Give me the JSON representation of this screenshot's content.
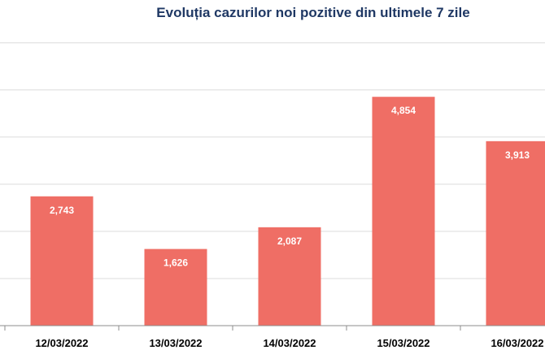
{
  "chart_data": {
    "type": "bar",
    "title": "Evoluția cazurilor noi pozitive din ultimele 7 zile",
    "categories": [
      "12/03/2022",
      "13/03/2022",
      "14/03/2022",
      "15/03/2022",
      "16/03/2022"
    ],
    "values": [
      2743,
      1626,
      2087,
      4854,
      3913
    ],
    "value_labels": [
      "2,743",
      "1,626",
      "2,087",
      "4,854",
      "3,913"
    ],
    "ylim": [
      0,
      6000
    ],
    "gridlines": [
      1000,
      2000,
      3000,
      4000,
      5000,
      6000
    ],
    "grid": true,
    "bar_color": "#ef6e65",
    "title_color": "#1f3864",
    "legend": "none"
  }
}
